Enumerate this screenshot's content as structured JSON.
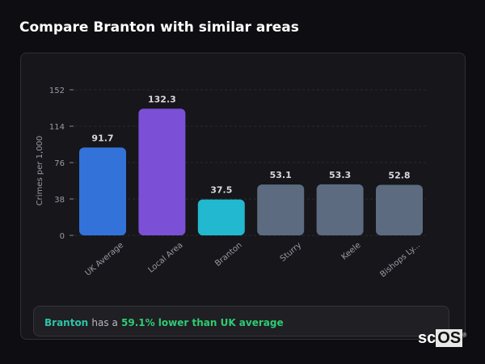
{
  "header": {
    "title": "Compare Branton with similar areas"
  },
  "chart_data": {
    "type": "bar",
    "title": "",
    "xlabel": "",
    "ylabel": "Crimes per 1,000",
    "ylim": [
      0,
      152
    ],
    "yticks": [
      0,
      38,
      76,
      114,
      152
    ],
    "grid": true,
    "categories": [
      "UK Average",
      "Local Area",
      "Branton",
      "Sturry",
      "Keele",
      "Bishops Ly..."
    ],
    "values": [
      91.7,
      132.3,
      37.5,
      53.1,
      53.3,
      52.8
    ],
    "data_labels": [
      "91.7",
      "132.3",
      "37.5",
      "53.1",
      "53.3",
      "52.8"
    ],
    "colors": [
      "#3373d9",
      "#7b4fd6",
      "#22b8cf",
      "#5c6b80",
      "#5c6b80",
      "#5c6b80"
    ]
  },
  "summary": {
    "area": "Branton",
    "middle": "has a",
    "comparison": "59.1% lower than UK average"
  },
  "logo": {
    "text_sc": "sc",
    "text_os": "OS",
    "mark": "®"
  }
}
